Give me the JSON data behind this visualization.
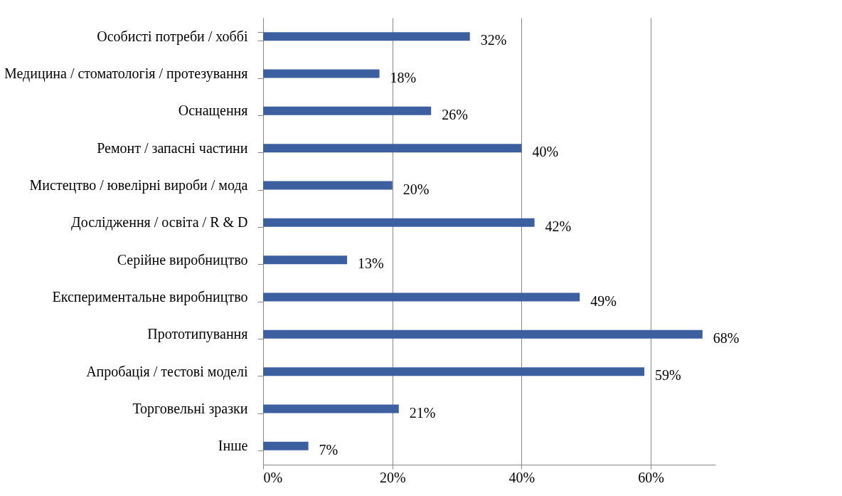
{
  "chart_data": {
    "type": "bar",
    "orientation": "horizontal",
    "categories": [
      "Особисті потреби / хоббі",
      "Медицина / стоматологія / протезування",
      "Оснащення",
      "Ремонт / запасні частини",
      "Мистецтво / ювелірні вироби / мода",
      "Дослідження / освіта / R & D",
      "Серійне виробництво",
      "Експериментальне виробництво",
      "Прототипування",
      "Апробація / тестові моделі",
      "Торговельні зразки",
      "Інше"
    ],
    "values": [
      32,
      18,
      26,
      40,
      20,
      42,
      13,
      49,
      68,
      59,
      21,
      7
    ],
    "value_labels": [
      "32%",
      "18%",
      "26%",
      "40%",
      "20%",
      "42%",
      "13%",
      "49%",
      "68%",
      "59%",
      "21%",
      "7%"
    ],
    "color": "#3c5fa0",
    "xlim": [
      0,
      70
    ],
    "xticks": [
      {
        "value": 0,
        "label": "0%"
      },
      {
        "value": 20,
        "label": "20%"
      },
      {
        "value": 40,
        "label": "40%"
      },
      {
        "value": 60,
        "label": "60%"
      }
    ],
    "grid": "x"
  }
}
